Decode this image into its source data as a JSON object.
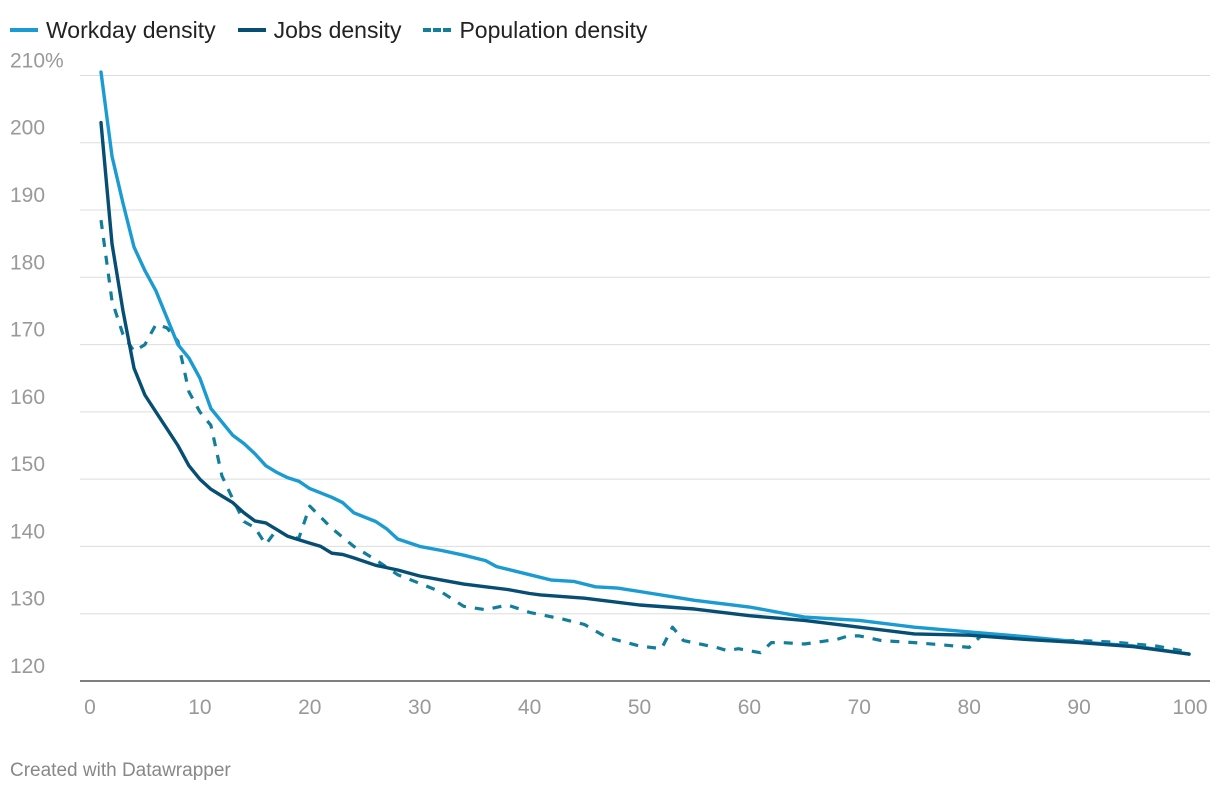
{
  "legend": {
    "items": [
      {
        "label": "Workday density",
        "color": "#1a9bd1",
        "dashed": false
      },
      {
        "label": "Jobs density",
        "color": "#064e73",
        "dashed": false
      },
      {
        "label": "Population density",
        "color": "#137d9c",
        "dashed": true
      }
    ]
  },
  "footer": {
    "credit": "Created with Datawrapper"
  },
  "chart_data": {
    "type": "line",
    "title": "",
    "xlabel": "",
    "ylabel": "",
    "xlim": [
      0,
      100
    ],
    "ylim": [
      120,
      212
    ],
    "x_ticks": [
      0,
      10,
      20,
      30,
      40,
      50,
      60,
      70,
      80,
      90,
      100
    ],
    "x_tick_labels": [
      "0",
      "10",
      "20",
      "30",
      "40",
      "50",
      "60",
      "70",
      "80",
      "90",
      "100"
    ],
    "y_ticks": [
      120,
      130,
      140,
      150,
      160,
      170,
      180,
      190,
      200,
      210
    ],
    "y_tick_labels": [
      "120",
      "130",
      "140",
      "150",
      "160",
      "170",
      "180",
      "190",
      "200",
      "210%"
    ],
    "grid": "horizontal",
    "legend_position": "top-left",
    "series": [
      {
        "name": "Workday density",
        "color": "#1a9bd1",
        "dashed": false,
        "x": [
          1,
          2,
          3,
          4,
          5,
          6,
          7,
          8,
          9,
          10,
          11,
          12,
          13,
          14,
          15,
          16,
          17,
          18,
          19,
          20,
          22,
          23,
          24,
          26,
          27,
          28,
          30,
          32,
          34,
          36,
          37,
          40,
          42,
          44,
          46,
          48,
          50,
          55,
          60,
          65,
          70,
          75,
          80,
          85,
          90,
          95,
          100
        ],
        "y": [
          210.5,
          198,
          191,
          184.5,
          181,
          178,
          174,
          170,
          168,
          165,
          160.5,
          158.5,
          156.5,
          155.3,
          153.8,
          152,
          151,
          150.2,
          149.7,
          148.6,
          147.3,
          146.5,
          145,
          143.7,
          142.6,
          141.1,
          140,
          139.4,
          138.7,
          137.9,
          137,
          135.8,
          135,
          134.8,
          134,
          133.8,
          133.3,
          132,
          131,
          129.5,
          129,
          128,
          127.3,
          126.6,
          125.8,
          125.2,
          124
        ]
      },
      {
        "name": "Jobs density",
        "color": "#064e73",
        "dashed": false,
        "x": [
          1,
          2,
          3,
          4,
          5,
          6,
          7,
          8,
          9,
          10,
          11,
          12,
          13,
          14,
          15,
          16,
          17,
          18,
          19,
          20,
          21,
          22,
          23,
          24,
          26,
          28,
          30,
          32,
          34,
          36,
          38,
          40,
          41,
          45,
          50,
          55,
          60,
          65,
          70,
          75,
          80,
          85,
          90,
          95,
          100
        ],
        "y": [
          203,
          185,
          175,
          166.5,
          162.5,
          160,
          157.5,
          155,
          152,
          150,
          148.5,
          147.5,
          146.5,
          145,
          143.8,
          143.5,
          142.5,
          141.5,
          141,
          140.5,
          140,
          139,
          138.8,
          138.3,
          137.2,
          136.5,
          135.6,
          135,
          134.4,
          134,
          133.6,
          133,
          132.8,
          132.3,
          131.3,
          130.7,
          129.7,
          129,
          128,
          127,
          126.8,
          126.2,
          125.7,
          125.1,
          124
        ]
      },
      {
        "name": "Population density",
        "color": "#137d9c",
        "dashed": true,
        "x": [
          1,
          2,
          3,
          4,
          5,
          6,
          7,
          8,
          9,
          10,
          11,
          12,
          13,
          14,
          15,
          16,
          17,
          18,
          19,
          20,
          22,
          24,
          26,
          28,
          30,
          32,
          34,
          36,
          38,
          40,
          43,
          45,
          47,
          50,
          52,
          53,
          54,
          57,
          58,
          59,
          61,
          62,
          63,
          65,
          68,
          69,
          70,
          72,
          75,
          78,
          80,
          81,
          82,
          83,
          85,
          87,
          90,
          93,
          97,
          100
        ],
        "y": [
          188.5,
          176.5,
          171.5,
          169,
          170,
          173,
          172.5,
          170.5,
          163,
          160,
          158,
          150.5,
          147,
          143.7,
          142.8,
          140.3,
          142.5,
          141.5,
          141.2,
          146,
          142.7,
          140,
          138,
          135.8,
          134.5,
          133.2,
          131.1,
          130.6,
          131.3,
          130.2,
          129.2,
          128.4,
          126.5,
          125.2,
          124.8,
          128,
          126,
          125,
          124.5,
          124.8,
          124.2,
          125.7,
          125.7,
          125.5,
          126.2,
          126.7,
          126.7,
          126,
          125.7,
          125.3,
          125,
          126.6,
          126.8,
          126.7,
          126.4,
          126,
          126,
          125.8,
          125.2,
          124.3
        ]
      }
    ]
  }
}
